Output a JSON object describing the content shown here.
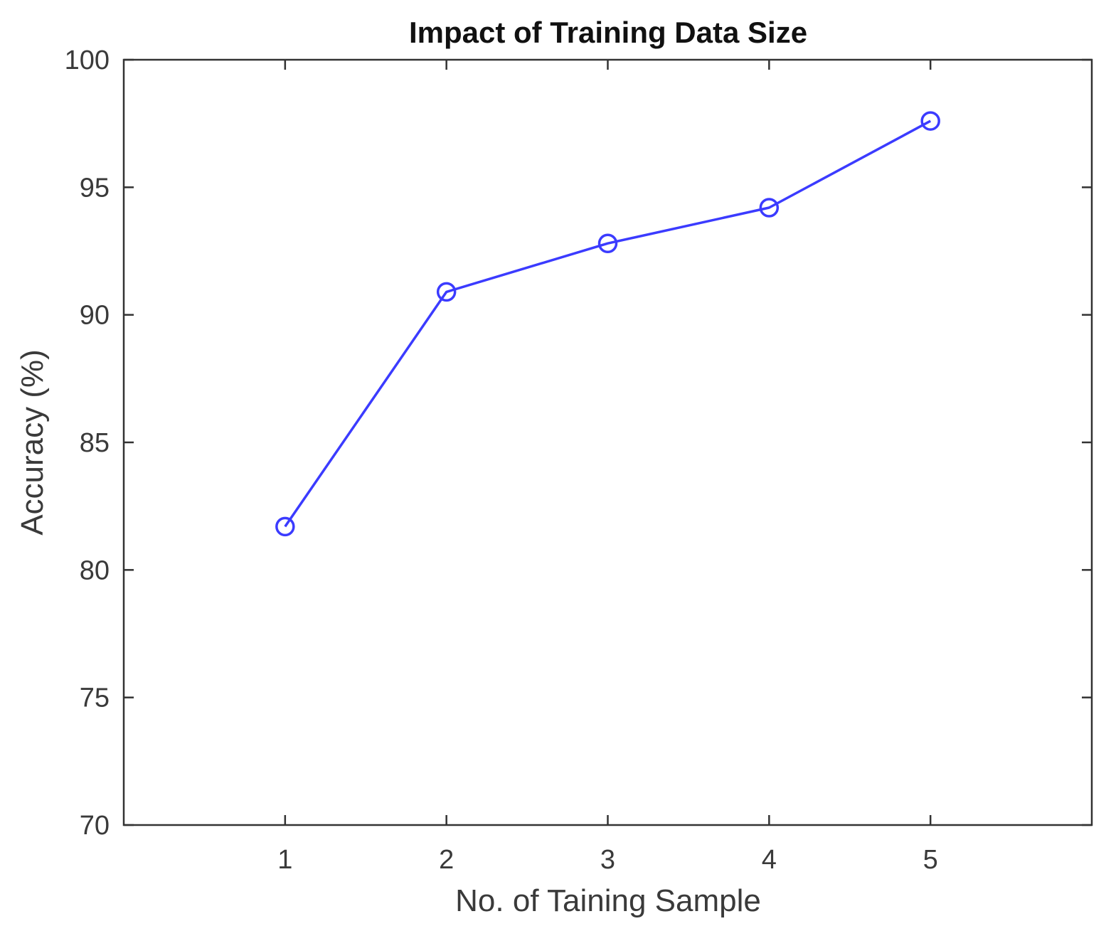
{
  "chart_data": {
    "type": "line",
    "title": "Impact of Training Data Size",
    "xlabel": "No. of Taining Sample",
    "ylabel": "Accuracy (%)",
    "x": [
      1,
      2,
      3,
      4,
      5
    ],
    "xlim": [
      0,
      6
    ],
    "ylim": [
      70,
      100
    ],
    "xticks": [
      1,
      2,
      3,
      4,
      5
    ],
    "yticks": [
      70,
      75,
      80,
      85,
      90,
      95,
      100
    ],
    "grid": false,
    "series": [
      {
        "values": [
          81.7,
          90.9,
          92.8,
          94.2,
          97.6
        ],
        "color": "#3b3bff",
        "marker": "circle"
      }
    ],
    "axis_color": "#333333"
  }
}
